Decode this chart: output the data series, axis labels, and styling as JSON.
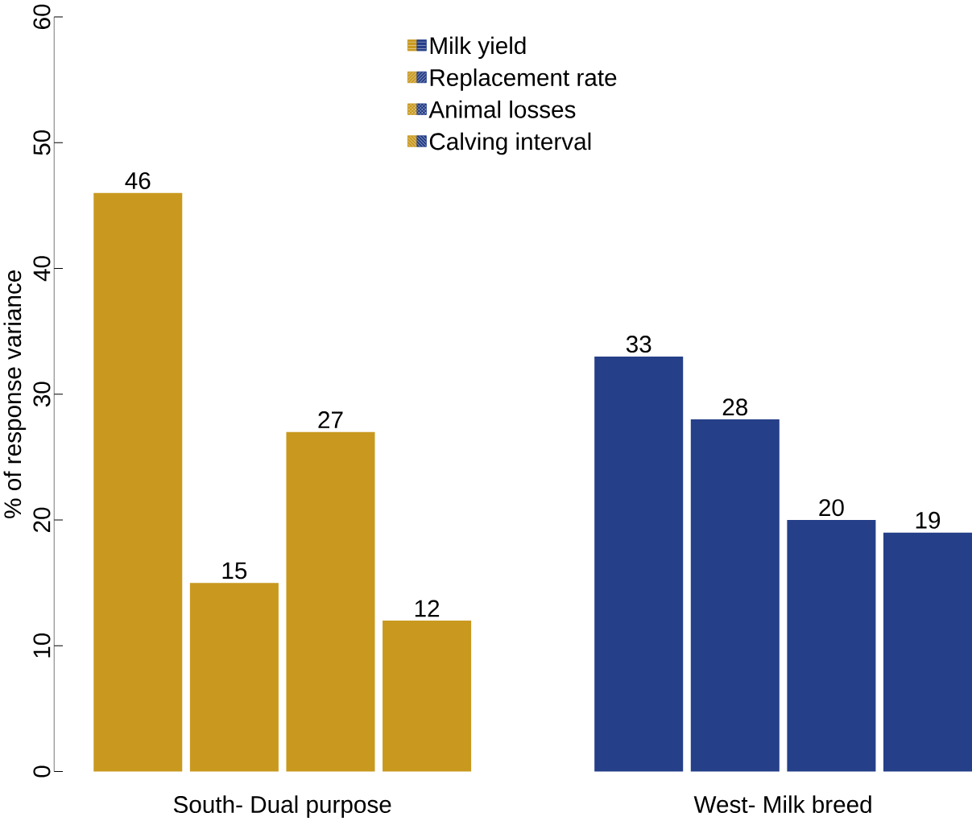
{
  "chart_data": {
    "type": "bar",
    "ylabel": "% of response variance",
    "categories": [
      "South- Dual purpose",
      "West- Milk breed"
    ],
    "series": [
      {
        "name": "Milk yield",
        "colors": [
          "#c9991f",
          "#253f88"
        ],
        "values": [
          46,
          33
        ]
      },
      {
        "name": "Replacement rate",
        "colors": [
          "#c9991f",
          "#253f88"
        ],
        "values": [
          15,
          28
        ]
      },
      {
        "name": "Animal losses",
        "colors": [
          "#c9991f",
          "#253f88"
        ],
        "values": [
          27,
          20
        ]
      },
      {
        "name": "Calving interval",
        "colors": [
          "#c9991f",
          "#253f88"
        ],
        "values": [
          12,
          19
        ]
      }
    ],
    "ylim": [
      0,
      60
    ],
    "yticks": [
      0,
      10,
      20,
      30,
      40,
      50,
      60
    ],
    "data_labels": true,
    "legend": "top",
    "grid": false
  }
}
